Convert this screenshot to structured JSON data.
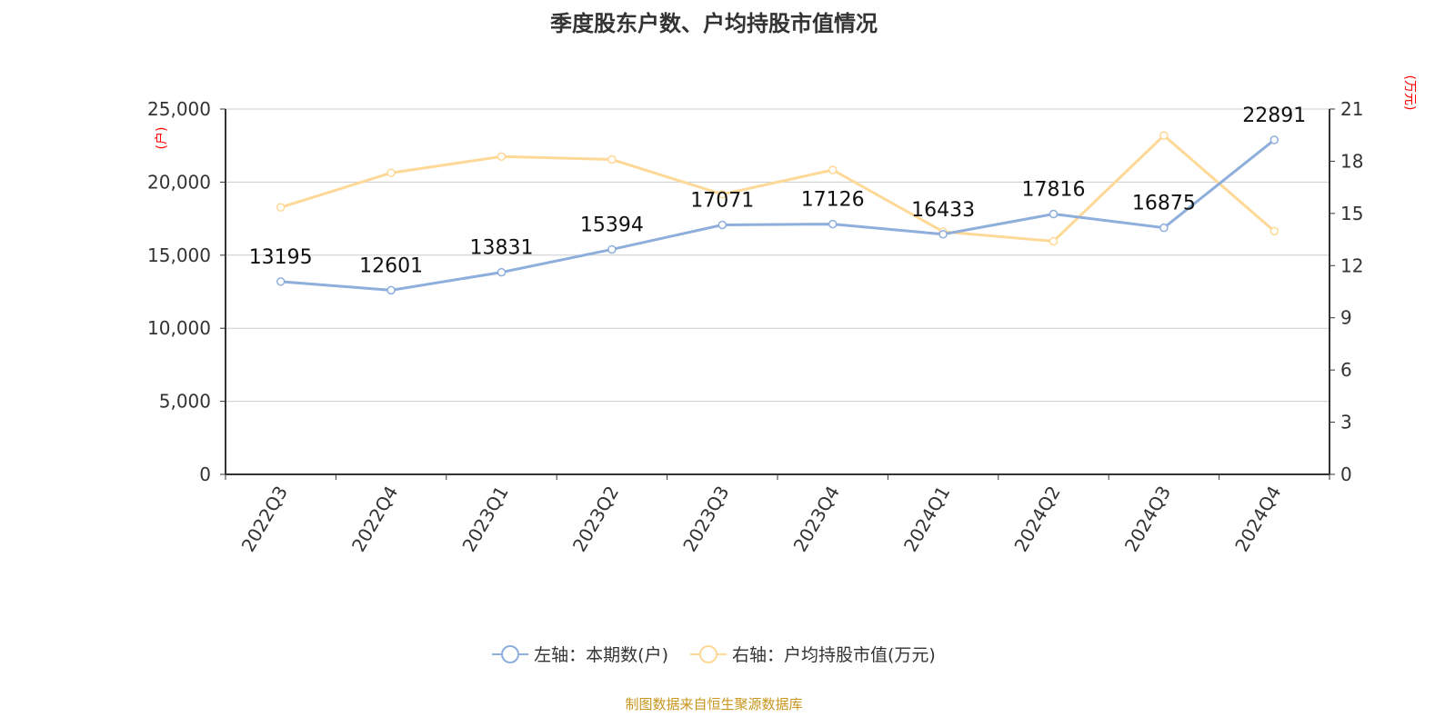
{
  "title": "季度股东户数、户均持股市值情况",
  "source": "制图数据来自恒生聚源数据库",
  "chart_data": {
    "type": "line",
    "title": "季度股东户数、户均持股市值情况",
    "categories": [
      "2022Q3",
      "2022Q4",
      "2023Q1",
      "2023Q2",
      "2023Q3",
      "2023Q4",
      "2024Q1",
      "2024Q2",
      "2024Q3",
      "2024Q4"
    ],
    "left_axis": {
      "unit": "(户)",
      "range": [
        0,
        25000
      ],
      "ticks": [
        "0",
        "5,000",
        "10,000",
        "15,000",
        "20,000",
        "25,000"
      ]
    },
    "right_axis": {
      "unit": "(万元)",
      "range": [
        0,
        21
      ],
      "ticks": [
        "0",
        "3",
        "6",
        "9",
        "12",
        "15",
        "18",
        "21"
      ]
    },
    "grid": true,
    "legend_placement": "bottom",
    "series": [
      {
        "name": "左轴：本期数(户)",
        "axis": "left",
        "color": "#8eaedb",
        "values": [
          13195,
          12601,
          13831,
          15394,
          17071,
          17126,
          16433,
          17816,
          16875,
          22891
        ],
        "labels": [
          "13195",
          "12601",
          "13831",
          "15394",
          "17071",
          "17126",
          "16433",
          "17816",
          "16875",
          "22891"
        ]
      },
      {
        "name": "右轴：户均持股市值(万元)",
        "axis": "right",
        "color": "#fed897",
        "values": [
          15.35,
          17.33,
          18.27,
          18.1,
          16.1,
          17.5,
          13.95,
          13.4,
          19.48,
          13.98
        ]
      }
    ]
  }
}
